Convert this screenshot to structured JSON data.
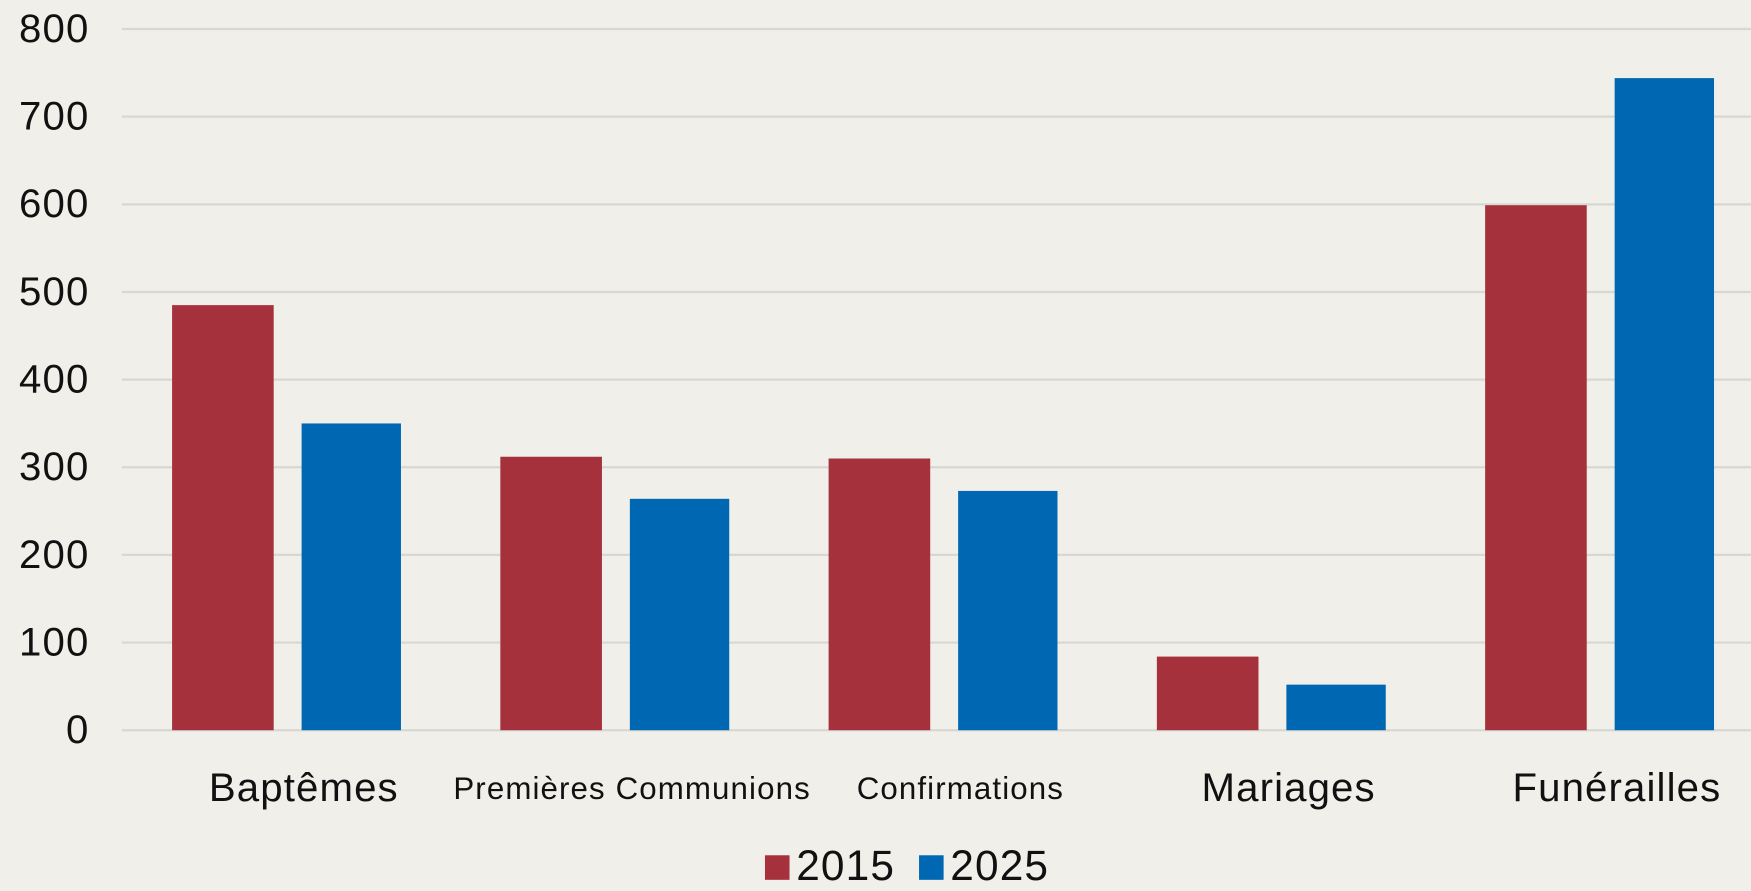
{
  "chart_data": {
    "type": "bar",
    "categories": [
      "Baptêmes",
      "Premières Communions",
      "Confirmations",
      "Mariages",
      "Funérailles"
    ],
    "series": [
      {
        "name": "2015",
        "color": "#a5313c",
        "values": [
          485,
          312,
          310,
          84,
          599
        ]
      },
      {
        "name": "2025",
        "color": "#0068b2",
        "values": [
          350,
          264,
          273,
          52,
          744
        ]
      }
    ],
    "ylim": [
      0,
      800
    ],
    "yticks": [
      0,
      100,
      200,
      300,
      400,
      500,
      600,
      700,
      800
    ],
    "grid": true,
    "legend": "bottom"
  }
}
